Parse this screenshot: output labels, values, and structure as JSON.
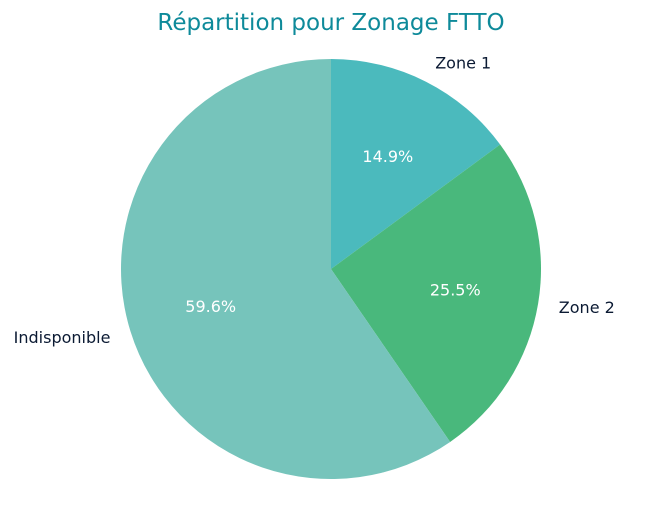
{
  "chart_data": {
    "type": "pie",
    "title": "Répartition pour Zonage FTTO",
    "start_angle_deg": 90,
    "direction": "clockwise",
    "slices": [
      {
        "label": "Zone 1",
        "value": 14.9,
        "pct_label": "14.9%",
        "color": "#4bbabd"
      },
      {
        "label": "Zone 2",
        "value": 25.5,
        "pct_label": "25.5%",
        "color": "#49b87c"
      },
      {
        "label": "Indisponible",
        "value": 59.6,
        "pct_label": "59.6%",
        "color": "#76c4bb"
      }
    ]
  },
  "colors": {
    "title": "#0e8a9a",
    "label": "#0b1a33",
    "pct": "#ffffff",
    "background": "#ffffff"
  }
}
